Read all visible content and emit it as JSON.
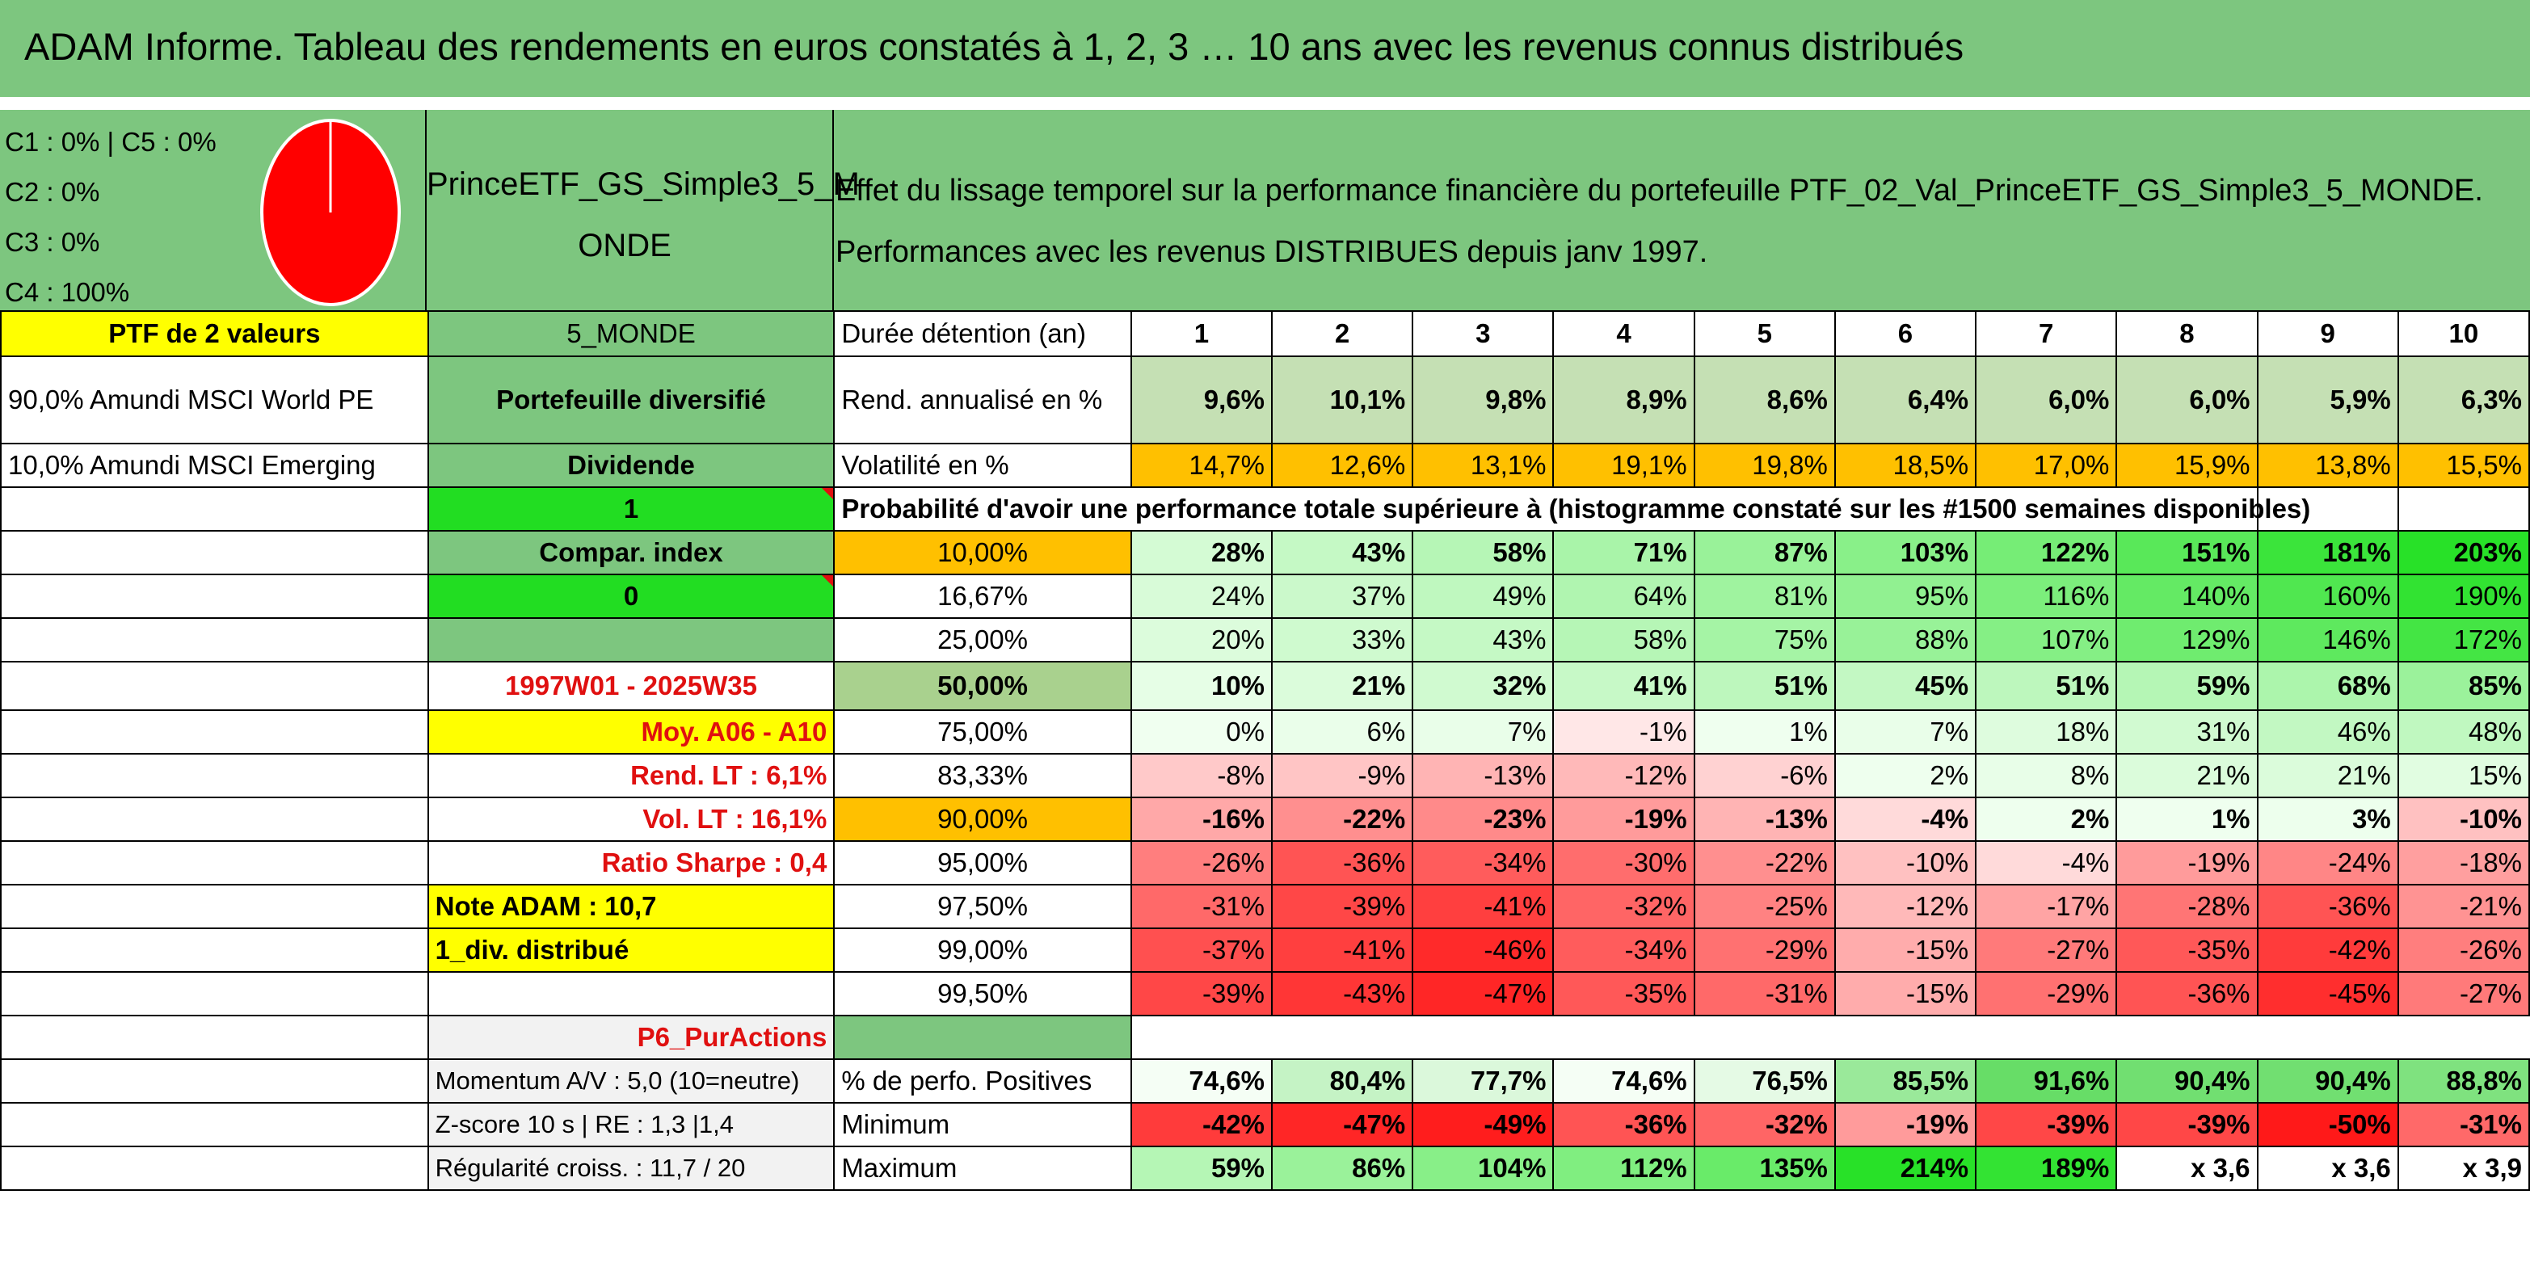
{
  "header": {
    "title": "ADAM Informe. Tableau des rendements en euros constatés à 1, 2, 3 … 10 ans avec les revenus connus distribués"
  },
  "allocation": {
    "legend": [
      "C1 : 0% | C5 : 0%",
      "C2 : 0%",
      "C3 : 0%",
      "C4 : 100%"
    ],
    "pie_slices": [
      {
        "name": "C1",
        "value": 0
      },
      {
        "name": "C2",
        "value": 0
      },
      {
        "name": "C3",
        "value": 0
      },
      {
        "name": "C4",
        "value": 100
      },
      {
        "name": "C5",
        "value": 0
      }
    ],
    "pie_color": "#ff0000"
  },
  "fund": {
    "name_line1": "PrinceETF_GS_Simple3_5_M",
    "name_line2": "ONDE"
  },
  "description": {
    "line1": "Effet du lissage temporel sur la performance financière du portefeuille PTF_02_Val_PrinceETF_GS_Simple3_5_MONDE.",
    "line2": "Performances avec les revenus DISTRIBUES depuis janv 1997."
  },
  "sidebar": {
    "ptf": "PTF de 2 valeurs",
    "holding1": "90,0% Amundi MSCI World PE",
    "holding2": "10,0% Amundi MSCI Emerging",
    "zone": "5_MONDE",
    "type": "Portefeuille diversifié",
    "dividend_label": "Dividende",
    "dividend_value": "1",
    "compar_label": "Compar. index",
    "compar_value": "0",
    "period": "1997W01 - 2025W35",
    "moy": "Moy. A06 - A10",
    "rend_lt": "Rend. LT : 6,1%",
    "vol_lt": "Vol. LT : 16,1%",
    "sharpe": "Ratio Sharpe : 0,4",
    "note": "Note ADAM : 10,7",
    "div_distrib": "1_div. distribué",
    "category": "P6_PurActions",
    "momentum": "Momentum A/V : 5,0 (10=neutre)",
    "zscore": "Z-score 10 s | RE : 1,3 |1,4",
    "regularite": "Régularité croiss. : 11,7 / 20"
  },
  "table": {
    "duration_label": "Durée détention (an)",
    "years": [
      "1",
      "2",
      "3",
      "4",
      "5",
      "6",
      "7",
      "8",
      "9",
      "10"
    ],
    "rend_label": "Rend. annualisé en %",
    "rend": [
      "9,6%",
      "10,1%",
      "9,8%",
      "8,9%",
      "8,6%",
      "6,4%",
      "6,0%",
      "6,0%",
      "5,9%",
      "6,3%"
    ],
    "vol_label": "Volatilité en %",
    "vol": [
      "14,7%",
      "12,6%",
      "13,1%",
      "19,1%",
      "19,8%",
      "18,5%",
      "17,0%",
      "15,9%",
      "13,8%",
      "15,5%"
    ],
    "proba_title": "Probabilité d'avoir une performance totale supérieure à (histogramme constaté sur les #1500 semaines disponibles)",
    "quantiles": [
      {
        "label": "10,00%",
        "values": [
          "28%",
          "43%",
          "58%",
          "71%",
          "87%",
          "103%",
          "122%",
          "151%",
          "181%",
          "203%"
        ]
      },
      {
        "label": "16,67%",
        "values": [
          "24%",
          "37%",
          "49%",
          "64%",
          "81%",
          "95%",
          "116%",
          "140%",
          "160%",
          "190%"
        ]
      },
      {
        "label": "25,00%",
        "values": [
          "20%",
          "33%",
          "43%",
          "58%",
          "75%",
          "88%",
          "107%",
          "129%",
          "146%",
          "172%"
        ]
      },
      {
        "label": "50,00%",
        "values": [
          "10%",
          "21%",
          "32%",
          "41%",
          "51%",
          "45%",
          "51%",
          "59%",
          "68%",
          "85%"
        ]
      },
      {
        "label": "75,00%",
        "values": [
          "0%",
          "6%",
          "7%",
          "-1%",
          "1%",
          "7%",
          "18%",
          "31%",
          "46%",
          "48%"
        ]
      },
      {
        "label": "83,33%",
        "values": [
          "-8%",
          "-9%",
          "-13%",
          "-12%",
          "-6%",
          "2%",
          "8%",
          "21%",
          "21%",
          "15%"
        ]
      },
      {
        "label": "90,00%",
        "values": [
          "-16%",
          "-22%",
          "-23%",
          "-19%",
          "-13%",
          "-4%",
          "2%",
          "1%",
          "3%",
          "-10%"
        ]
      },
      {
        "label": "95,00%",
        "values": [
          "-26%",
          "-36%",
          "-34%",
          "-30%",
          "-22%",
          "-10%",
          "-4%",
          "-19%",
          "-24%",
          "-18%"
        ]
      },
      {
        "label": "97,50%",
        "values": [
          "-31%",
          "-39%",
          "-41%",
          "-32%",
          "-25%",
          "-12%",
          "-17%",
          "-28%",
          "-36%",
          "-21%"
        ]
      },
      {
        "label": "99,00%",
        "values": [
          "-37%",
          "-41%",
          "-46%",
          "-34%",
          "-29%",
          "-15%",
          "-27%",
          "-35%",
          "-42%",
          "-26%"
        ]
      },
      {
        "label": "99,50%",
        "values": [
          "-39%",
          "-43%",
          "-47%",
          "-35%",
          "-31%",
          "-15%",
          "-29%",
          "-36%",
          "-45%",
          "-27%"
        ]
      }
    ],
    "pos_label": "% de perfo. Positives",
    "pos": [
      "74,6%",
      "80,4%",
      "77,7%",
      "74,6%",
      "76,5%",
      "85,5%",
      "91,6%",
      "90,4%",
      "90,4%",
      "88,8%"
    ],
    "min_label": "Minimum",
    "min": [
      "-42%",
      "-47%",
      "-49%",
      "-36%",
      "-32%",
      "-19%",
      "-39%",
      "-39%",
      "-50%",
      "-31%"
    ],
    "max_label": "Maximum",
    "max": [
      "59%",
      "86%",
      "104%",
      "112%",
      "135%",
      "214%",
      "189%",
      "x 3,6",
      "x 3,6",
      "x 3,9"
    ]
  },
  "colors": {
    "header_green": "#7dc67f",
    "bright_green": "#22dd22",
    "yellow": "#ffff00",
    "orange": "#ffc000",
    "label_red": "#e01010"
  }
}
